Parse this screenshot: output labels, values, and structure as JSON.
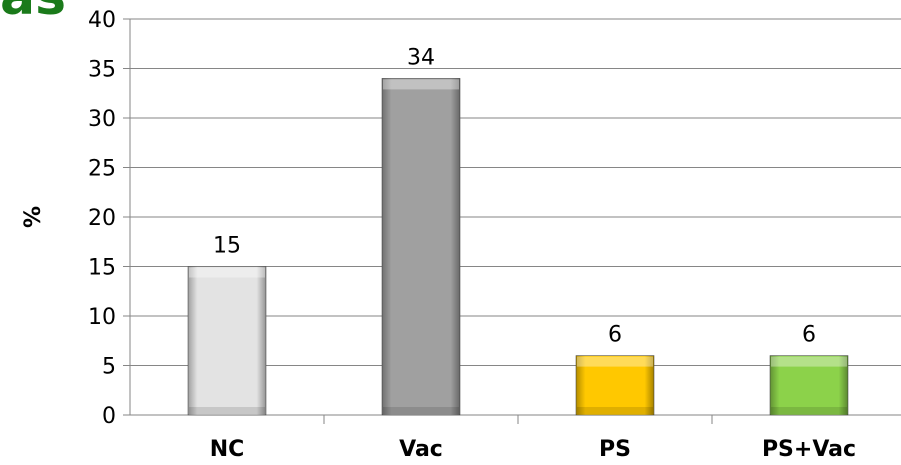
{
  "title_fragment": "as",
  "chart_data": {
    "type": "bar",
    "categories": [
      "NC",
      "Vac",
      "PS",
      "PS+Vac"
    ],
    "values": [
      15,
      34,
      6,
      6
    ],
    "colors": [
      "#e3e3e3",
      "#a0a0a0",
      "#ffc800",
      "#8cd24a"
    ],
    "title": "",
    "xlabel": "",
    "ylabel": "%",
    "ylim": [
      0,
      40
    ],
    "yticks": [
      0,
      5,
      10,
      15,
      20,
      25,
      30,
      35,
      40
    ],
    "grid": true,
    "legend": "none"
  }
}
